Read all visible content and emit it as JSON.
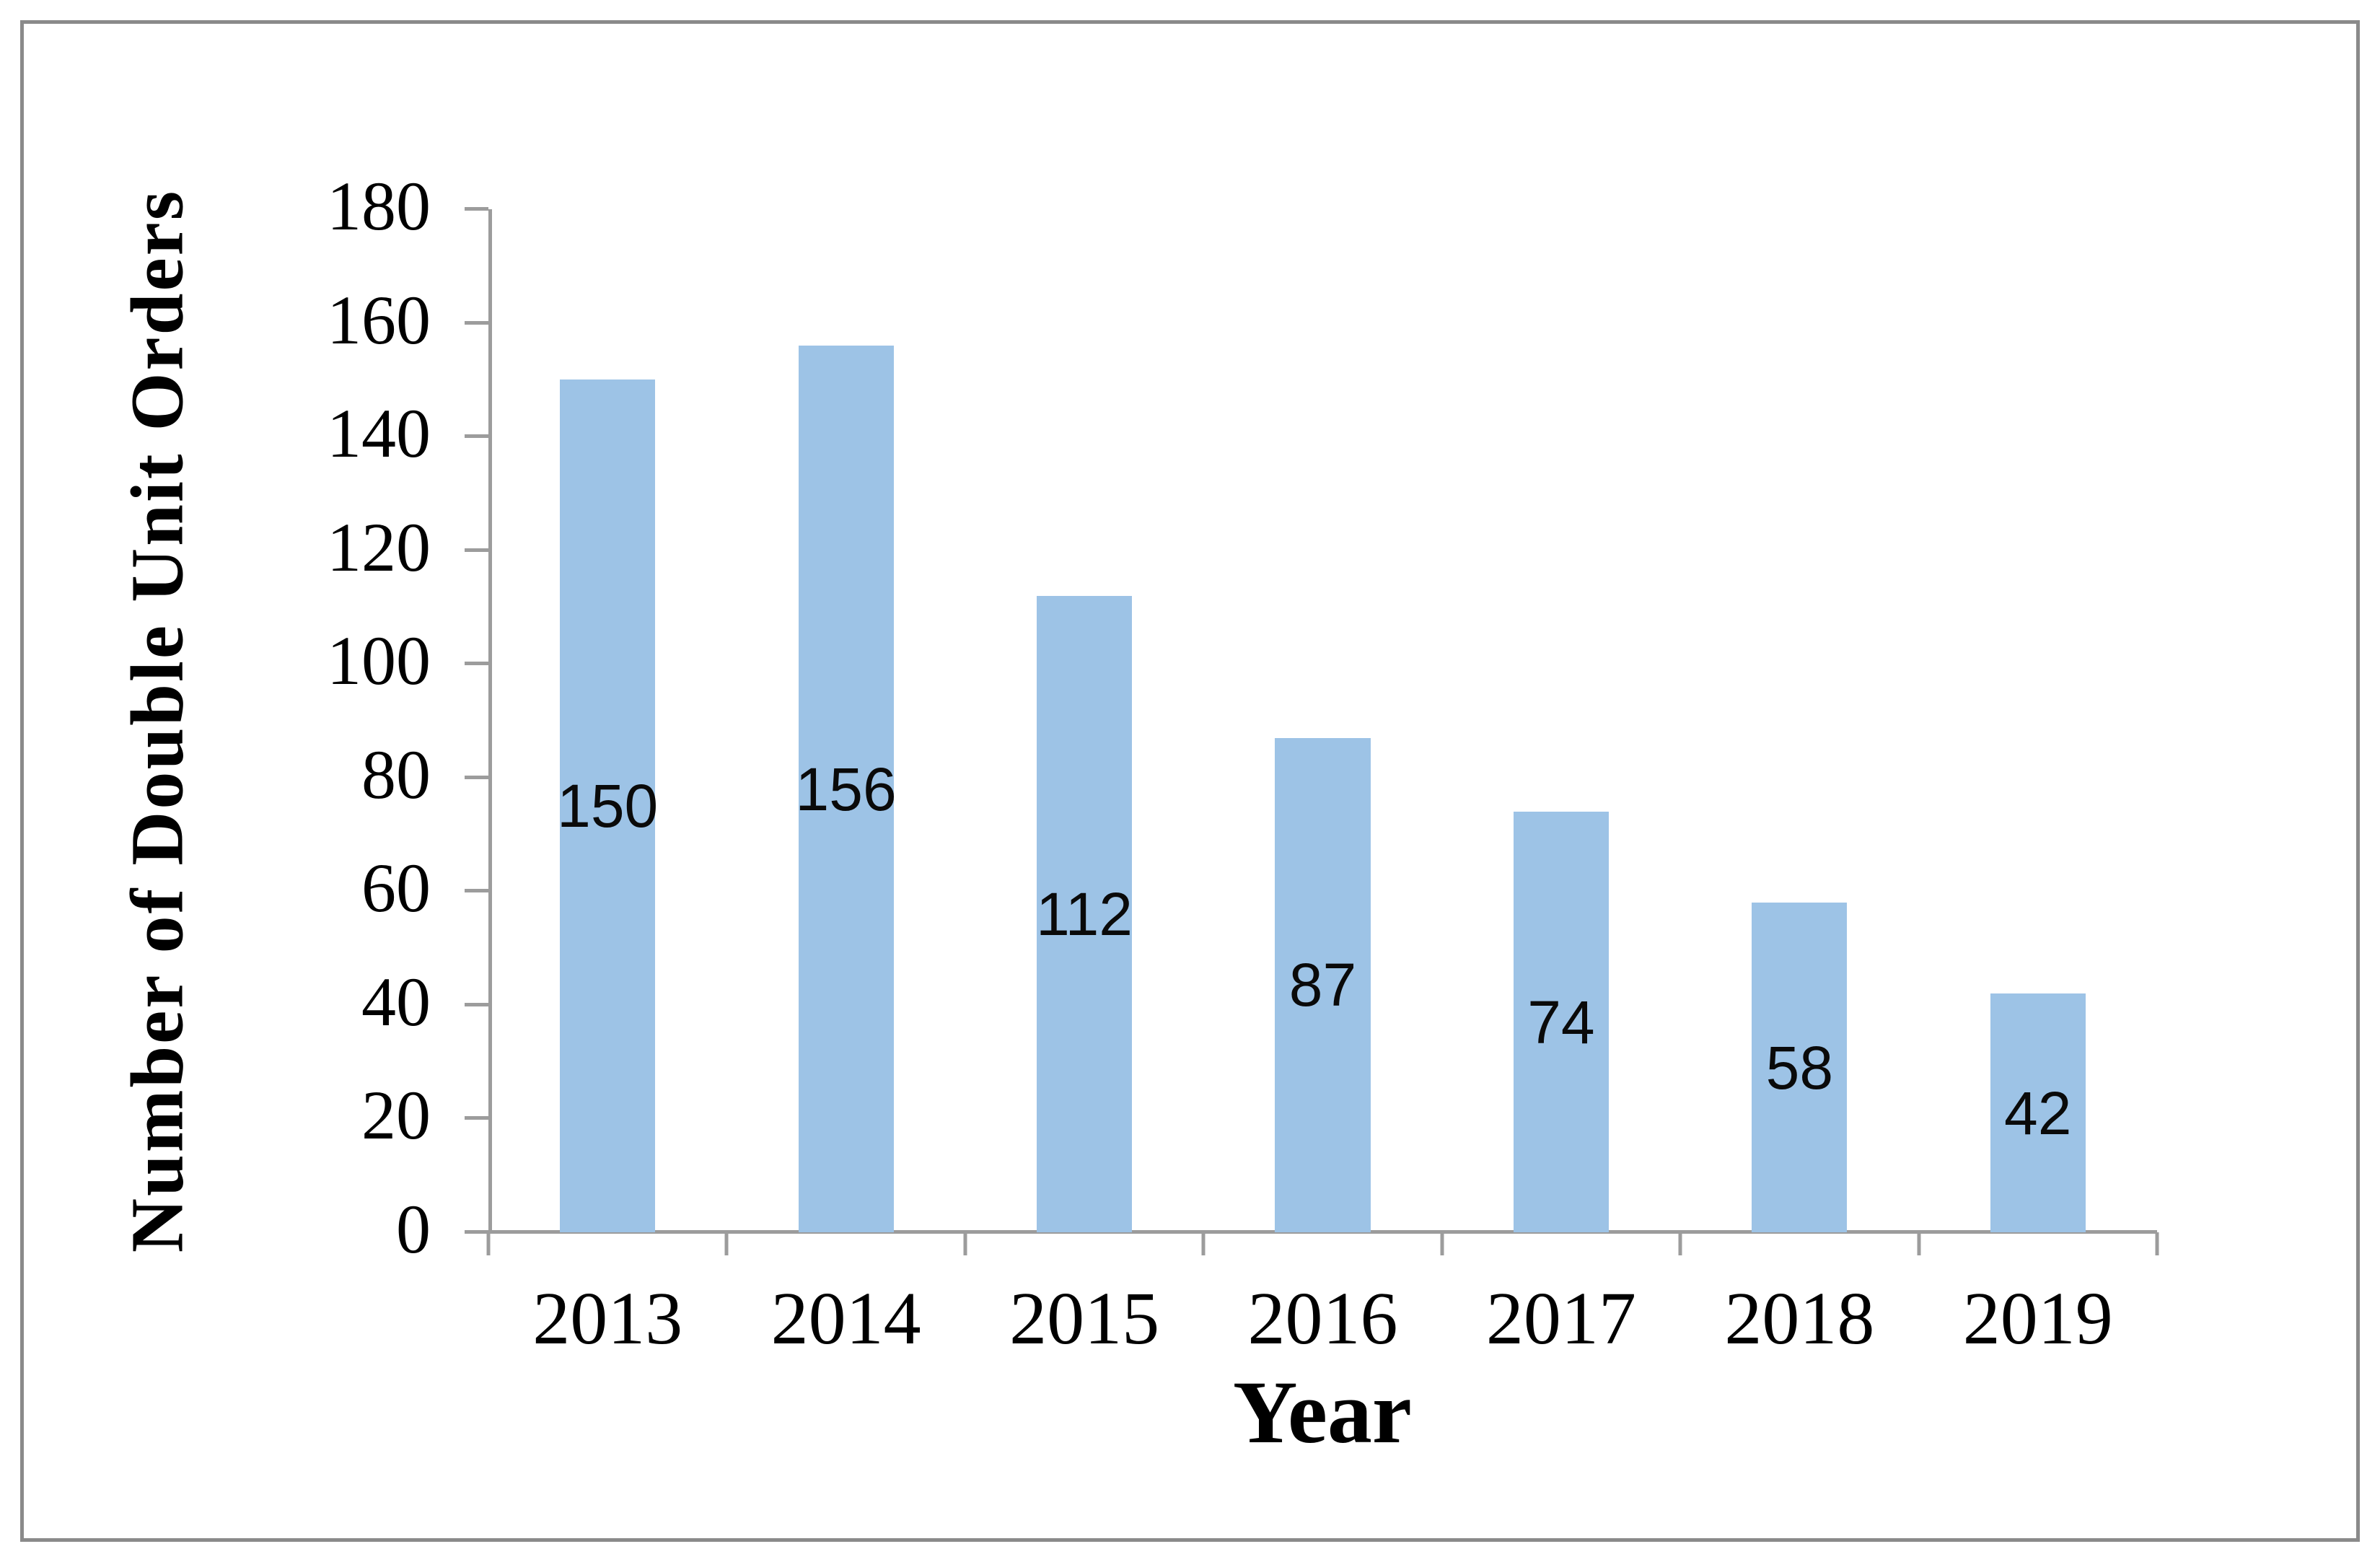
{
  "figure": {
    "background_color": "#ffffff",
    "frame_border_color": "#8a8a8a"
  },
  "chart_data": {
    "type": "bar",
    "title": "",
    "categories": [
      "2013",
      "2014",
      "2015",
      "2016",
      "2017",
      "2018",
      "2019"
    ],
    "values": [
      150,
      156,
      112,
      87,
      74,
      58,
      42
    ],
    "data_labels": [
      "150",
      "156",
      "112",
      "87",
      "74",
      "58",
      "42"
    ],
    "data_label_position": "center-inside",
    "xlabel": "Year",
    "ylabel": "Number of Double Unit Orders",
    "ylim": [
      0,
      180
    ],
    "ytick_step": 20,
    "yticks": [
      "0",
      "20",
      "40",
      "60",
      "80",
      "100",
      "120",
      "140",
      "160",
      "180"
    ],
    "bar_color": "#9DC3E6",
    "axis_color": "#9c9c9c",
    "grid": false,
    "legend": "none",
    "bar_gap_ratio": 1.5
  }
}
